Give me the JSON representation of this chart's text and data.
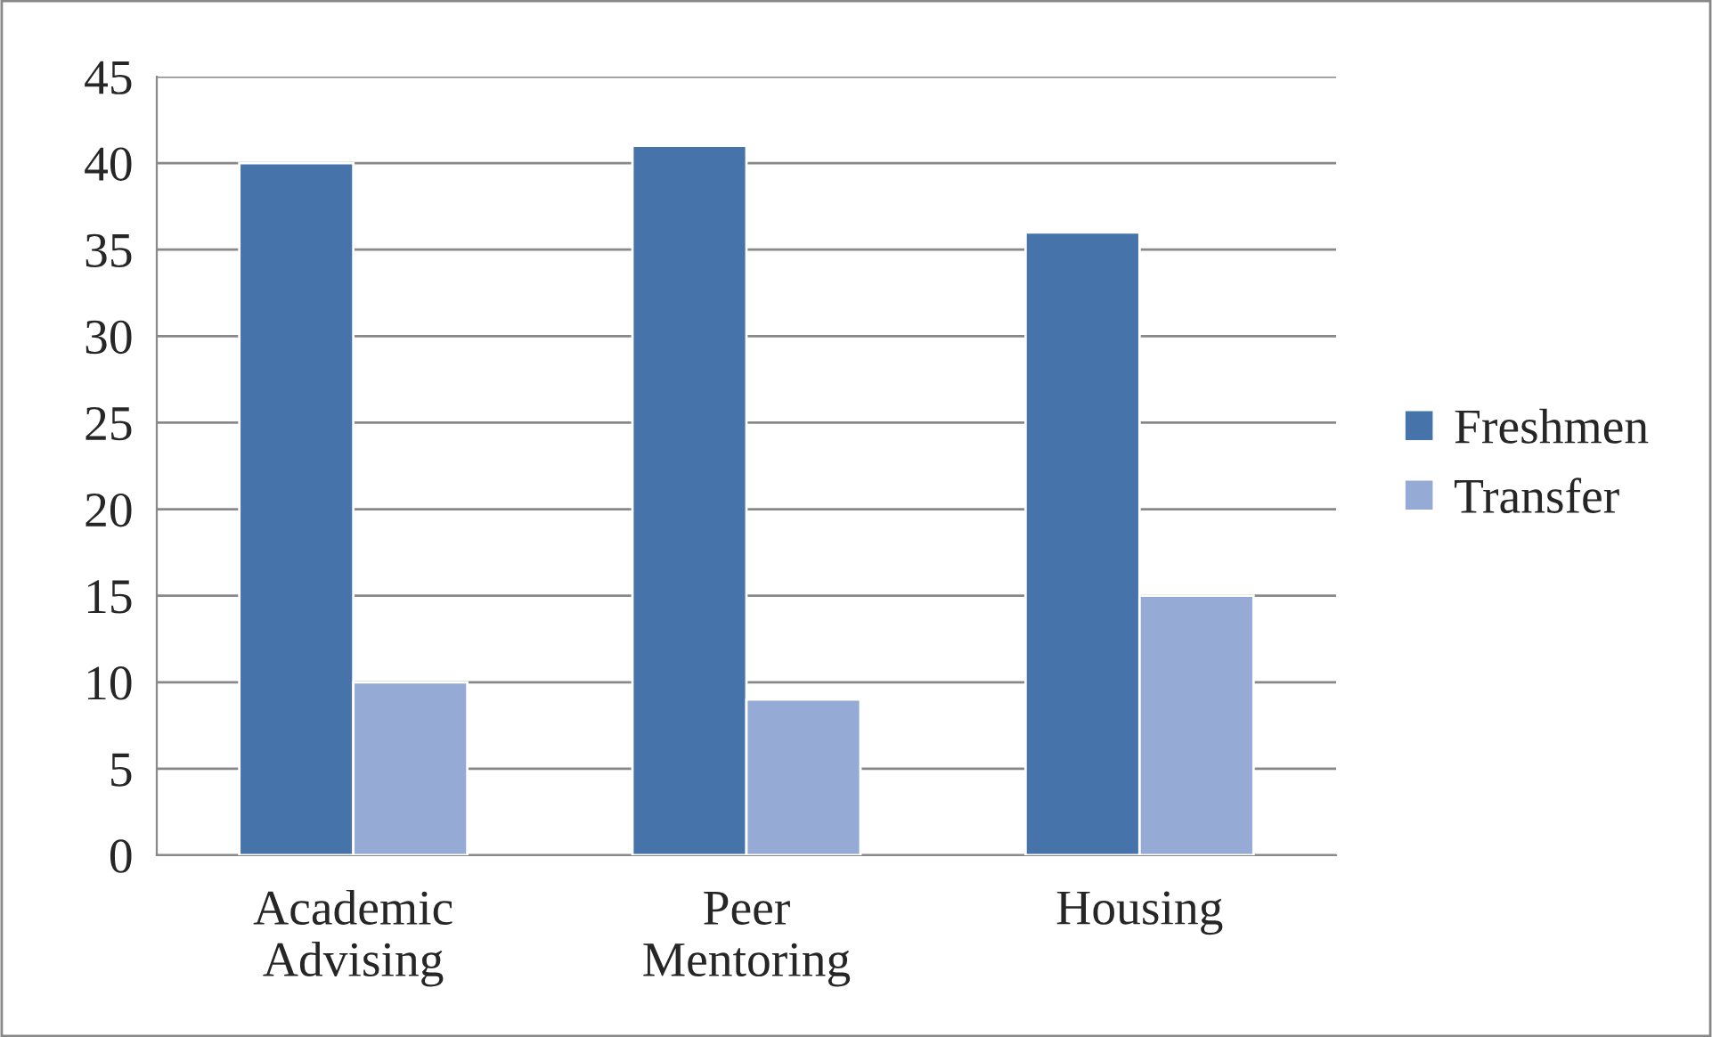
{
  "chart_data": {
    "type": "bar",
    "categories": [
      "Academic\nAdvising",
      "Peer\nMentoring",
      "Housing"
    ],
    "series": [
      {
        "name": "Freshmen",
        "color": "#4674aa",
        "values": [
          40,
          41,
          36
        ]
      },
      {
        "name": "Transfer",
        "color": "#95abd5",
        "values": [
          10,
          9,
          15
        ]
      }
    ],
    "ylim": [
      0,
      45
    ],
    "yticks": [
      0,
      5,
      10,
      15,
      20,
      25,
      30,
      35,
      40,
      45
    ],
    "grid": "y",
    "legend": "right"
  }
}
